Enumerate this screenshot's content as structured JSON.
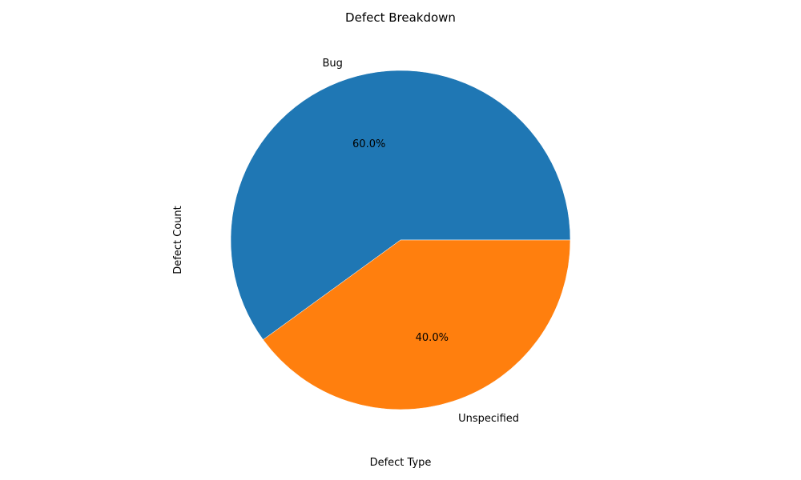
{
  "chart_data": {
    "type": "pie",
    "title": "Defect Breakdown",
    "xlabel": "Defect Type",
    "ylabel": "Defect Count",
    "categories": [
      "Bug",
      "Unspecified"
    ],
    "values": [
      60,
      40
    ],
    "percent_labels": [
      "60.0%",
      "40.0%"
    ],
    "colors": [
      "#1f77b4",
      "#ff7f0e"
    ]
  }
}
